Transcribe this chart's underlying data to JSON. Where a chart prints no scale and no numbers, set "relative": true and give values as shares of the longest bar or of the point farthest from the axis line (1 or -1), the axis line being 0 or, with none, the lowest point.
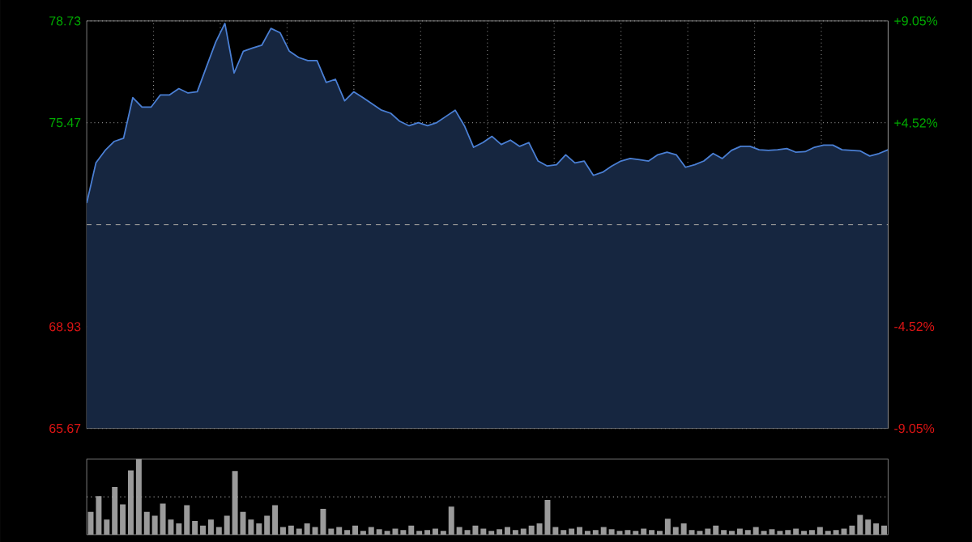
{
  "chart_data": [
    {
      "type": "area",
      "categories": [
        null,
        null,
        null,
        null,
        null,
        null,
        null,
        null,
        null,
        null,
        null,
        null,
        null,
        null,
        null,
        null,
        null,
        null,
        null,
        null,
        null,
        null,
        null,
        null,
        null,
        null,
        null,
        null,
        null,
        null,
        null,
        null,
        null,
        null,
        null,
        null,
        null,
        null,
        null,
        null,
        null,
        null,
        null,
        null,
        null,
        null,
        null,
        null,
        null,
        null,
        null,
        null,
        null,
        null,
        null,
        null,
        null,
        null,
        null,
        null,
        null,
        null,
        null,
        null,
        null,
        null,
        null,
        null,
        null,
        null,
        null,
        null,
        null,
        null,
        null,
        null,
        null,
        null,
        null,
        null,
        null,
        null,
        null,
        null,
        null,
        null,
        null,
        null
      ],
      "series": [
        {
          "color": "#4a7fd4",
          "values": [
            72.89,
            74.18,
            74.58,
            74.87,
            74.97,
            76.27,
            75.97,
            75.97,
            76.36,
            76.36,
            76.56,
            76.42,
            76.46,
            77.26,
            78.05,
            78.65,
            77.06,
            77.76,
            77.86,
            77.95,
            78.49,
            78.35,
            77.76,
            77.56,
            77.46,
            77.46,
            76.76,
            76.86,
            76.17,
            76.46,
            76.27,
            76.07,
            75.87,
            75.77,
            75.51,
            75.37,
            75.47,
            75.37,
            75.47,
            75.67,
            75.87,
            75.37,
            74.68,
            74.83,
            75.03,
            74.77,
            74.91,
            74.71,
            74.83,
            74.24,
            74.08,
            74.12,
            74.44,
            74.18,
            74.24,
            73.78,
            73.88,
            74.08,
            74.24,
            74.32,
            74.28,
            74.24,
            74.44,
            74.52,
            74.44,
            74.04,
            74.12,
            74.24,
            74.48,
            74.32,
            74.58,
            74.71,
            74.71,
            74.6,
            74.58,
            74.6,
            74.64,
            74.52,
            74.54,
            74.68,
            74.75,
            74.75,
            74.6,
            74.58,
            74.56,
            74.4,
            74.48,
            74.6
          ]
        }
      ],
      "ylim": [
        65.67,
        78.73
      ],
      "yticks": [
        65.67,
        68.93,
        75.47,
        78.73
      ],
      "y2lim": [
        -9.05,
        9.05
      ],
      "y2ticks": [
        {
          "value": -9.05,
          "label": "-9.05%"
        },
        {
          "value": -4.52,
          "label": "-4.52%"
        },
        {
          "value": 4.52,
          "label": "+4.52%"
        },
        {
          "value": 9.05,
          "label": "+9.05%"
        }
      ],
      "ref_lines": [
        {
          "axis": "y",
          "value": 72.2,
          "line_style": "dashed"
        }
      ],
      "grid": true
    },
    {
      "type": "bar",
      "relative": true,
      "color": "#9a9a9a",
      "ref_lines": [
        {
          "axis": "y",
          "value": 0.5,
          "line_style": "dotted"
        }
      ],
      "categories": [
        null,
        null,
        null,
        null,
        null,
        null,
        null,
        null,
        null,
        null,
        null,
        null,
        null,
        null,
        null,
        null,
        null,
        null,
        null,
        null,
        null,
        null,
        null,
        null,
        null,
        null,
        null,
        null,
        null,
        null,
        null,
        null,
        null,
        null,
        null,
        null,
        null,
        null,
        null,
        null,
        null,
        null,
        null,
        null,
        null,
        null,
        null,
        null,
        null,
        null,
        null,
        null,
        null,
        null,
        null,
        null,
        null,
        null,
        null,
        null,
        null,
        null,
        null,
        null,
        null,
        null,
        null,
        null,
        null,
        null,
        null,
        null,
        null,
        null,
        null,
        null,
        null,
        null,
        null,
        null,
        null,
        null,
        null,
        null,
        null,
        null,
        null,
        null,
        null,
        null,
        null,
        null,
        null,
        null,
        null,
        null,
        null,
        null,
        null,
        null
      ],
      "values": [
        0.3,
        0.51,
        0.2,
        0.63,
        0.4,
        0.85,
        1.0,
        0.3,
        0.25,
        0.41,
        0.2,
        0.15,
        0.39,
        0.18,
        0.12,
        0.2,
        0.1,
        0.25,
        0.84,
        0.3,
        0.2,
        0.15,
        0.25,
        0.39,
        0.1,
        0.12,
        0.08,
        0.15,
        0.1,
        0.34,
        0.08,
        0.1,
        0.06,
        0.12,
        0.05,
        0.1,
        0.07,
        0.05,
        0.08,
        0.06,
        0.12,
        0.05,
        0.06,
        0.08,
        0.05,
        0.37,
        0.1,
        0.06,
        0.12,
        0.08,
        0.05,
        0.07,
        0.1,
        0.06,
        0.08,
        0.12,
        0.15,
        0.46,
        0.1,
        0.06,
        0.08,
        0.1,
        0.05,
        0.06,
        0.1,
        0.07,
        0.05,
        0.06,
        0.05,
        0.08,
        0.06,
        0.05,
        0.21,
        0.1,
        0.15,
        0.06,
        0.05,
        0.08,
        0.12,
        0.06,
        0.05,
        0.08,
        0.06,
        0.1,
        0.05,
        0.07,
        0.05,
        0.06,
        0.08,
        0.05,
        0.06,
        0.1,
        0.05,
        0.06,
        0.08,
        0.12,
        0.26,
        0.2,
        0.15,
        0.12
      ]
    }
  ]
}
